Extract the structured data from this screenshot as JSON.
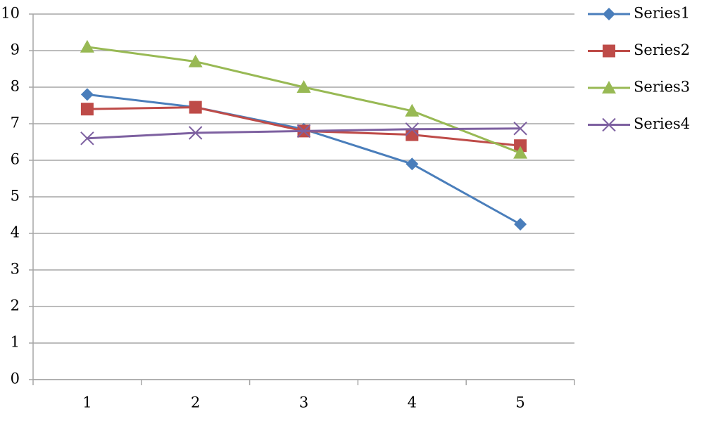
{
  "chart_data": {
    "type": "line",
    "categories": [
      "1",
      "2",
      "3",
      "4",
      "5"
    ],
    "series": [
      {
        "name": "Series1",
        "color": "#4a7ebb",
        "marker": "diamond",
        "values": [
          7.8,
          7.45,
          6.85,
          5.9,
          4.25
        ]
      },
      {
        "name": "Series2",
        "color": "#be4b48",
        "marker": "square",
        "values": [
          7.4,
          7.45,
          6.8,
          6.7,
          6.4
        ]
      },
      {
        "name": "Series3",
        "color": "#98b954",
        "marker": "triangle",
        "values": [
          9.1,
          8.7,
          8.0,
          7.35,
          6.2
        ]
      },
      {
        "name": "Series4",
        "color": "#7d60a0",
        "marker": "x",
        "values": [
          6.6,
          6.75,
          6.8,
          6.85,
          6.87
        ]
      }
    ],
    "ylim": [
      0,
      10
    ],
    "yticks": [
      0,
      1,
      2,
      3,
      4,
      5,
      6,
      7,
      8,
      9,
      10
    ],
    "grid": true,
    "legend": "right"
  }
}
